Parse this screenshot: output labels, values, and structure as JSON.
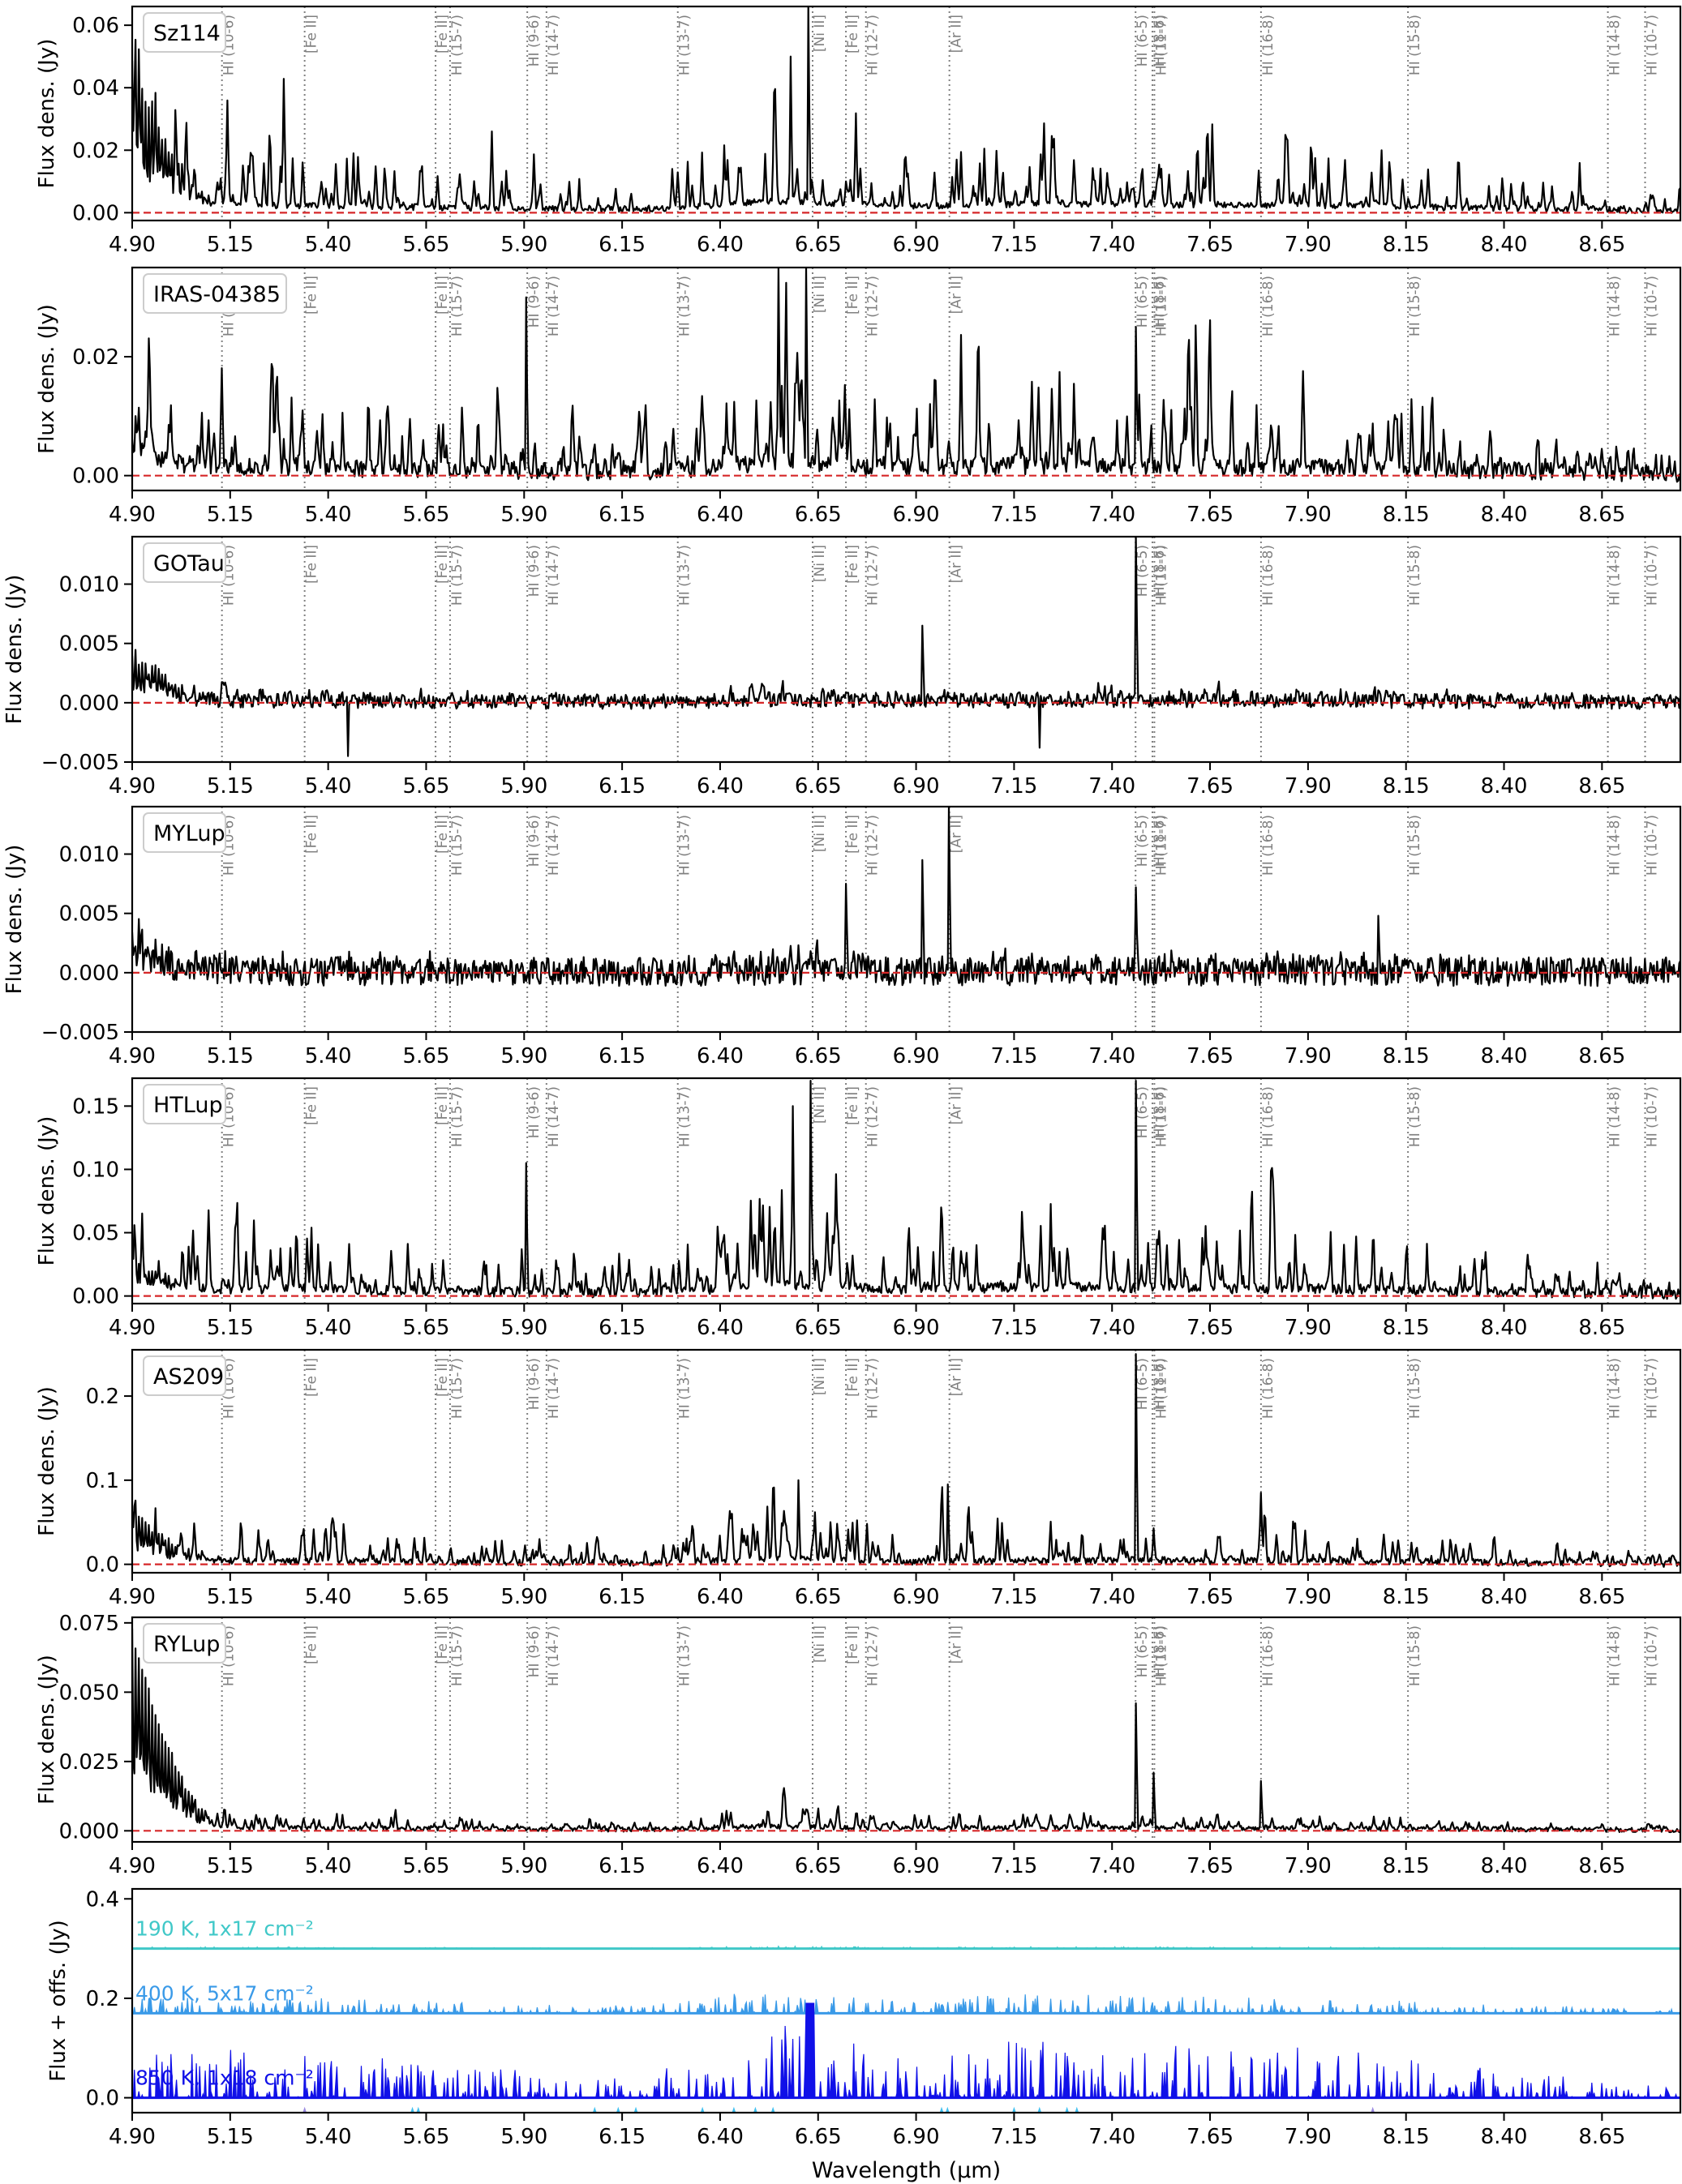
{
  "figure": {
    "xlabel": "Wavelength (µm)",
    "xlim": [
      4.9,
      8.85
    ],
    "x_ticks": [
      4.9,
      5.15,
      5.4,
      5.65,
      5.9,
      6.15,
      6.4,
      6.65,
      6.9,
      7.15,
      7.4,
      7.65,
      7.9,
      8.15,
      8.4,
      8.65
    ],
    "x_tick_labels": [
      "4.90",
      "5.15",
      "5.40",
      "5.65",
      "5.90",
      "6.15",
      "6.40",
      "6.65",
      "6.90",
      "7.15",
      "7.40",
      "7.65",
      "7.90",
      "8.15",
      "8.40",
      "8.65"
    ],
    "line_ids": [
      {
        "label": "HI (10-6)",
        "x": 5.129
      },
      {
        "label": "[Fe II]",
        "x": 5.34
      },
      {
        "label": "[Fe II]",
        "x": 5.674
      },
      {
        "label": "HI (15-7)",
        "x": 5.711
      },
      {
        "label": "HI (9-6)",
        "x": 5.908
      },
      {
        "label": "HI (14-7)",
        "x": 5.957
      },
      {
        "label": "HI (13-7)",
        "x": 6.292
      },
      {
        "label": "[Ni II]",
        "x": 6.636
      },
      {
        "label": "[Fe II]",
        "x": 6.721
      },
      {
        "label": "HI (12-7)",
        "x": 6.772
      },
      {
        "label": "[Ar II]",
        "x": 6.985
      },
      {
        "label": "HI (6-5)",
        "x": 7.46
      },
      {
        "label": "HI (8-6)",
        "x": 7.503
      },
      {
        "label": "HI (11-7)",
        "x": 7.508
      },
      {
        "label": "HI (16-8)",
        "x": 7.78
      },
      {
        "label": "HI (15-8)",
        "x": 8.155
      },
      {
        "label": "HI (14-8)",
        "x": 8.665
      },
      {
        "label": "HI (10-7)",
        "x": 8.76
      }
    ],
    "colors": {
      "spectrum": "#000000",
      "zero_line": "#d62728",
      "line_marker": "#808080",
      "model_190K": "#40c8c8",
      "model_400K": "#3a9ae8",
      "model_850K": "#1010e8",
      "star_light": "#40c0f0",
      "star_purple": "#9a8ae0"
    }
  },
  "chart_data": [
    {
      "type": "line",
      "name": "Sz114",
      "ylabel": "Flux dens. (Jy)",
      "ylim": [
        -0.0025,
        0.066
      ],
      "yticks": [
        0.0,
        0.02,
        0.04,
        0.06
      ],
      "ytick_labels": [
        "0.00",
        "0.02",
        "0.04",
        "0.06"
      ],
      "spectrum_profile": {
        "continuum": 0.005,
        "line_amplitude": 0.015,
        "blue_edge_boost": 0.045,
        "noise": 0.001,
        "strong_peaks": [
          {
            "x": 6.625,
            "y": 0.066
          },
          {
            "x": 6.58,
            "y": 0.05
          }
        ]
      }
    },
    {
      "type": "line",
      "name": "IRAS-04385",
      "ylabel": "Flux dens. (Jy)",
      "ylim": [
        -0.0025,
        0.035
      ],
      "yticks": [
        0.0,
        0.02
      ],
      "ytick_labels": [
        "0.00",
        "0.02"
      ],
      "spectrum_profile": {
        "continuum": 0.003,
        "line_amplitude": 0.01,
        "blue_edge_boost": 0.006,
        "noise": 0.0015,
        "strong_peaks": [
          {
            "x": 6.62,
            "y": 0.035
          },
          {
            "x": 6.55,
            "y": 0.035
          },
          {
            "x": 5.905,
            "y": 0.03
          },
          {
            "x": 7.46,
            "y": 0.025
          }
        ]
      }
    },
    {
      "type": "line",
      "name": "GOTau",
      "ylabel": "Flux dens. (Jy)",
      "ylim": [
        -0.005,
        0.014
      ],
      "yticks": [
        -0.005,
        0.0,
        0.005,
        0.01
      ],
      "ytick_labels": [
        "−0.005",
        "0.000",
        "0.005",
        "0.010"
      ],
      "spectrum_profile": {
        "continuum": 0.0003,
        "line_amplitude": 0.0006,
        "blue_edge_boost": 0.004,
        "noise": 0.0006,
        "strong_peaks": [
          {
            "x": 7.46,
            "y": 0.014
          },
          {
            "x": 6.915,
            "y": 0.0065
          },
          {
            "x": 7.215,
            "y": -0.0038
          },
          {
            "x": 5.45,
            "y": -0.0045
          }
        ]
      }
    },
    {
      "type": "line",
      "name": "MYLup",
      "ylabel": "Flux dens. (Jy)",
      "ylim": [
        -0.005,
        0.014
      ],
      "yticks": [
        -0.005,
        0.0,
        0.005,
        0.01
      ],
      "ytick_labels": [
        "−0.005",
        "0.000",
        "0.005",
        "0.010"
      ],
      "spectrum_profile": {
        "continuum": 0.0002,
        "line_amplitude": 0.0007,
        "blue_edge_boost": 0.003,
        "noise": 0.0012,
        "strong_peaks": [
          {
            "x": 6.985,
            "y": 0.014
          },
          {
            "x": 6.915,
            "y": 0.0095
          },
          {
            "x": 6.72,
            "y": 0.0075
          },
          {
            "x": 7.46,
            "y": 0.0072
          },
          {
            "x": 8.08,
            "y": 0.0048
          }
        ]
      }
    },
    {
      "type": "line",
      "name": "HTLup",
      "ylabel": "Flux dens. (Jy)",
      "ylim": [
        -0.006,
        0.172
      ],
      "yticks": [
        0.0,
        0.05,
        0.1,
        0.15
      ],
      "ytick_labels": [
        "0.00",
        "0.05",
        "0.10",
        "0.15"
      ],
      "spectrum_profile": {
        "continuum": 0.012,
        "line_amplitude": 0.04,
        "blue_edge_boost": 0.02,
        "noise": 0.004,
        "strong_peaks": [
          {
            "x": 6.63,
            "y": 0.17
          },
          {
            "x": 6.585,
            "y": 0.15
          },
          {
            "x": 7.46,
            "y": 0.17
          },
          {
            "x": 5.905,
            "y": 0.105
          }
        ]
      }
    },
    {
      "type": "line",
      "name": "AS209",
      "ylabel": "Flux dens. (Jy)",
      "ylim": [
        -0.01,
        0.255
      ],
      "yticks": [
        0.0,
        0.1,
        0.2
      ],
      "ytick_labels": [
        "0.0",
        "0.1",
        "0.2"
      ],
      "spectrum_profile": {
        "continuum": 0.008,
        "line_amplitude": 0.035,
        "blue_edge_boost": 0.06,
        "noise": 0.004,
        "strong_peaks": [
          {
            "x": 7.46,
            "y": 0.25
          },
          {
            "x": 6.6,
            "y": 0.1
          },
          {
            "x": 6.98,
            "y": 0.095
          },
          {
            "x": 7.78,
            "y": 0.085
          }
        ]
      }
    },
    {
      "type": "line",
      "name": "RYLup",
      "ylabel": "Flux dens. (Jy)",
      "ylim": [
        -0.004,
        0.077
      ],
      "yticks": [
        0.0,
        0.025,
        0.05,
        0.075
      ],
      "ytick_labels": [
        "0.000",
        "0.025",
        "0.050",
        "0.075"
      ],
      "spectrum_profile": {
        "continuum": 0.002,
        "line_amplitude": 0.004,
        "blue_edge_boost": 0.07,
        "noise": 0.0008,
        "strong_peaks": [
          {
            "x": 7.46,
            "y": 0.046
          },
          {
            "x": 7.505,
            "y": 0.021
          },
          {
            "x": 7.78,
            "y": 0.018
          }
        ]
      }
    },
    {
      "type": "area",
      "name": "",
      "ylabel": "Flux + offs. (Jy)",
      "ylim": [
        -0.03,
        0.42
      ],
      "yticks": [
        0.0,
        0.2,
        0.4
      ],
      "ytick_labels": [
        "0.0",
        "0.2",
        "0.4"
      ],
      "series": [
        {
          "name": "190 K, 1x17 cm⁻²",
          "offset": 0.3,
          "line_amplitude": 0.003,
          "color_key": "model_190K"
        },
        {
          "name": "400 K, 5x17 cm⁻²",
          "offset": 0.17,
          "line_amplitude": 0.03,
          "color_key": "model_400K"
        },
        {
          "name": "850 K, 1x18 cm⁻²",
          "offset": 0.0,
          "line_amplitude": 0.09,
          "color_key": "model_850K",
          "strong_peaks": [
            {
              "x": 6.63,
              "y": 0.19
            }
          ]
        }
      ],
      "markers": [
        {
          "x": 5.34,
          "color_key": "star_purple"
        },
        {
          "x": 5.615,
          "color_key": "star_light"
        },
        {
          "x": 5.63,
          "color_key": "star_light"
        },
        {
          "x": 6.08,
          "color_key": "star_light"
        },
        {
          "x": 6.14,
          "color_key": "star_light"
        },
        {
          "x": 6.185,
          "color_key": "star_light"
        },
        {
          "x": 6.355,
          "color_key": "star_light"
        },
        {
          "x": 6.435,
          "color_key": "star_light"
        },
        {
          "x": 6.49,
          "color_key": "star_light"
        },
        {
          "x": 6.535,
          "color_key": "star_light"
        },
        {
          "x": 6.965,
          "color_key": "star_light"
        },
        {
          "x": 6.98,
          "color_key": "star_light"
        },
        {
          "x": 7.15,
          "color_key": "star_light"
        },
        {
          "x": 7.215,
          "color_key": "star_light"
        },
        {
          "x": 7.285,
          "color_key": "star_light"
        },
        {
          "x": 7.31,
          "color_key": "star_light"
        },
        {
          "x": 8.065,
          "color_key": "star_purple"
        }
      ]
    }
  ]
}
